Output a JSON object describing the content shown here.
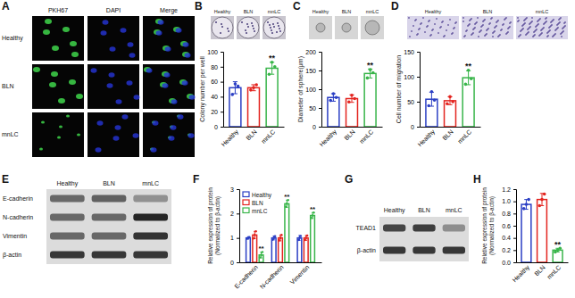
{
  "chart_data": [
    {
      "type": "bar",
      "panel": "B",
      "image_labels": [
        "Healthy",
        "BLN",
        "mnLC"
      ],
      "ylabel": "Colony number per well",
      "categories": [
        "Healthy",
        "BLN",
        "mnLC"
      ],
      "values": [
        52,
        52,
        78
      ],
      "errors": [
        8,
        4,
        8
      ],
      "points": [
        [
          43,
          57,
          54
        ],
        [
          49,
          52,
          56
        ],
        [
          70,
          86,
          80
        ]
      ],
      "colors": [
        "#2b3fc4",
        "#e3241f",
        "#39b54a"
      ],
      "ylim": [
        0,
        100
      ],
      "yticks": [
        0,
        20,
        40,
        60,
        80,
        100
      ],
      "annotations": [
        {
          "index": 2,
          "text": "**"
        }
      ]
    },
    {
      "type": "bar",
      "panel": "C",
      "image_labels": [
        "Healthy",
        "BLN",
        "mnLC"
      ],
      "ylabel": "Diameter of sphere(μm)",
      "categories": [
        "Healthy",
        "BLN",
        "mnLC"
      ],
      "values": [
        78,
        75,
        142
      ],
      "errors": [
        10,
        10,
        12
      ],
      "points": [
        [
          70,
          88,
          78
        ],
        [
          66,
          84,
          75
        ],
        [
          130,
          152,
          144
        ]
      ],
      "colors": [
        "#2b3fc4",
        "#e3241f",
        "#39b54a"
      ],
      "ylim": [
        0,
        200
      ],
      "yticks": [
        0,
        50,
        100,
        150,
        200
      ],
      "annotations": [
        {
          "index": 2,
          "text": "**"
        }
      ]
    },
    {
      "type": "bar",
      "panel": "D",
      "image_labels": [
        "Healthy",
        "BLN",
        "mnLC"
      ],
      "ylabel": "Cell number of migration",
      "categories": [
        "Healthy",
        "BLN",
        "mnLC"
      ],
      "values": [
        55,
        52,
        98
      ],
      "errors": [
        14,
        8,
        14
      ],
      "points": [
        [
          42,
          70,
          53
        ],
        [
          46,
          60,
          50
        ],
        [
          85,
          113,
          96
        ]
      ],
      "colors": [
        "#2b3fc4",
        "#e3241f",
        "#39b54a"
      ],
      "ylim": [
        0,
        150
      ],
      "yticks": [
        0,
        50,
        100,
        150
      ],
      "annotations": [
        {
          "index": 2,
          "text": "**"
        }
      ]
    },
    {
      "type": "bar",
      "panel": "F",
      "ylabel": [
        "Relative expression of protein",
        "(Normalized to β-actin)"
      ],
      "categories": [
        "E-cadherin",
        "N-cadherin",
        "Vimentin"
      ],
      "series": [
        {
          "name": "Healthy",
          "color": "#2b3fc4",
          "values": [
            1.0,
            1.0,
            1.0
          ],
          "errors": [
            0.05,
            0.08,
            0.1
          ],
          "points": [
            [
              0.97,
              1.0,
              1.03
            ],
            [
              0.93,
              1.0,
              1.07
            ],
            [
              0.92,
              1.0,
              1.08
            ]
          ]
        },
        {
          "name": "BLN",
          "color": "#e3241f",
          "values": [
            1.12,
            1.0,
            1.0
          ],
          "errors": [
            0.15,
            0.12,
            0.1
          ],
          "points": [
            [
              0.98,
              1.12,
              1.27
            ],
            [
              0.9,
              1.0,
              1.12
            ],
            [
              0.92,
              1.0,
              1.1
            ]
          ]
        },
        {
          "name": "mnLC",
          "color": "#39b54a",
          "values": [
            0.3,
            2.4,
            1.92
          ],
          "errors": [
            0.12,
            0.15,
            0.12
          ],
          "points": [
            [
              0.2,
              0.3,
              0.42
            ],
            [
              2.28,
              2.4,
              2.55
            ],
            [
              1.82,
              1.92,
              2.04
            ]
          ]
        }
      ],
      "ylim": [
        0,
        3
      ],
      "yticks": [
        0,
        1,
        2,
        3
      ],
      "legend": "upper left",
      "annotations": [
        {
          "series": 2,
          "index": 0,
          "text": "**"
        },
        {
          "series": 2,
          "index": 1,
          "text": "**"
        },
        {
          "series": 2,
          "index": 2,
          "text": "**"
        }
      ]
    },
    {
      "type": "bar",
      "panel": "H",
      "ylabel": [
        "Relative expression of protein",
        "(Normalized to β-actin)"
      ],
      "categories": [
        "Healthy",
        "BLN",
        "mnLC"
      ],
      "values": [
        0.95,
        1.03,
        0.2
      ],
      "errors": [
        0.08,
        0.1,
        0.03
      ],
      "points": [
        [
          0.88,
          0.95,
          1.03
        ],
        [
          0.93,
          1.03,
          1.12
        ],
        [
          0.17,
          0.2,
          0.23
        ]
      ],
      "colors": [
        "#2b3fc4",
        "#e3241f",
        "#39b54a"
      ],
      "ylim": [
        0,
        1.2
      ],
      "yticks": [
        {
          "value": 0,
          "label": "0.0"
        },
        0.2,
        0.4,
        0.6,
        0.8,
        {
          "value": 1,
          "label": "1.0"
        },
        1.2
      ],
      "annotations": [
        {
          "index": 2,
          "text": "**"
        }
      ]
    }
  ],
  "panels": {
    "A": {
      "label": "A",
      "columns": [
        "PKH67",
        "DAPI",
        "Merge"
      ],
      "rows": [
        "Healthy",
        "BLN",
        "mnLC"
      ]
    },
    "E": {
      "label": "E",
      "columns": [
        "Healthy",
        "BLN",
        "mnLC"
      ],
      "rows": [
        "E-cadherin",
        "N-cadherin",
        "Vimentin",
        "β-actin"
      ]
    },
    "G": {
      "label": "G",
      "columns": [
        "Healthy",
        "BLN",
        "mnLC"
      ],
      "rows": [
        "TEAD1",
        "β-actin"
      ]
    }
  }
}
